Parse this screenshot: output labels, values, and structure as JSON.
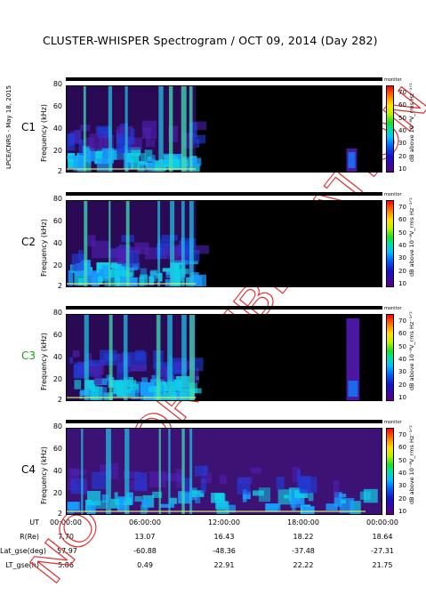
{
  "title": "CLUSTER-WHISPER Spectrogram / OCT 09, 2014 (Day 282)",
  "credit": "LPCE/CNRS - May 18, 2015",
  "watermark": "NOT FOR PUBLICATION",
  "chart_data": {
    "type": "heatmap",
    "panels": [
      {
        "name": "C1",
        "label_color": "#000000",
        "data_until_hour": 9.8,
        "late_patch": [
          21.2,
          22.0
        ]
      },
      {
        "name": "C2",
        "label_color": "#000000",
        "data_until_hour": 9.8,
        "late_patch": null
      },
      {
        "name": "C3",
        "label_color": "#18a018",
        "data_until_hour": 9.8,
        "late_patch": [
          21.2,
          22.2
        ]
      },
      {
        "name": "C4",
        "label_color": "#000000",
        "data_until_hour": 24.0,
        "late_patch": null
      }
    ],
    "ylabel": "Frequency (kHz)",
    "yticks": [
      "2",
      "20",
      "40",
      "60",
      "80"
    ],
    "ylim": [
      2,
      80
    ],
    "colorbar": {
      "title": "monitor",
      "label": "dB above 10⁻⁸V_rms Hz⁻¹ᐟ²",
      "ticks": [
        "10",
        "20",
        "30",
        "40",
        "50",
        "60",
        "70"
      ],
      "range": [
        10,
        70
      ]
    },
    "xlabel": "UT",
    "xticks": [
      "00:00:00",
      "06:00:00",
      "12:00:00",
      "18:00:00",
      "00:00:00"
    ],
    "xlim_hours": [
      0,
      24
    ]
  },
  "ephemeris": [
    {
      "label": "UT",
      "values": [
        "00:00:00",
        "06:00:00",
        "12:00:00",
        "18:00:00",
        "00:00:00"
      ]
    },
    {
      "label": "R(Re)",
      "values": [
        "7.70",
        "13.07",
        "16.43",
        "18.22",
        "18.64"
      ]
    },
    {
      "label": "Lat_gse(deg)",
      "values": [
        "-57.97",
        "-60.88",
        "-48.36",
        "-37.48",
        "-27.31"
      ]
    },
    {
      "label": "LT_gse(h)",
      "values": [
        "5.86",
        "0.49",
        "22.91",
        "22.22",
        "21.75"
      ]
    }
  ]
}
